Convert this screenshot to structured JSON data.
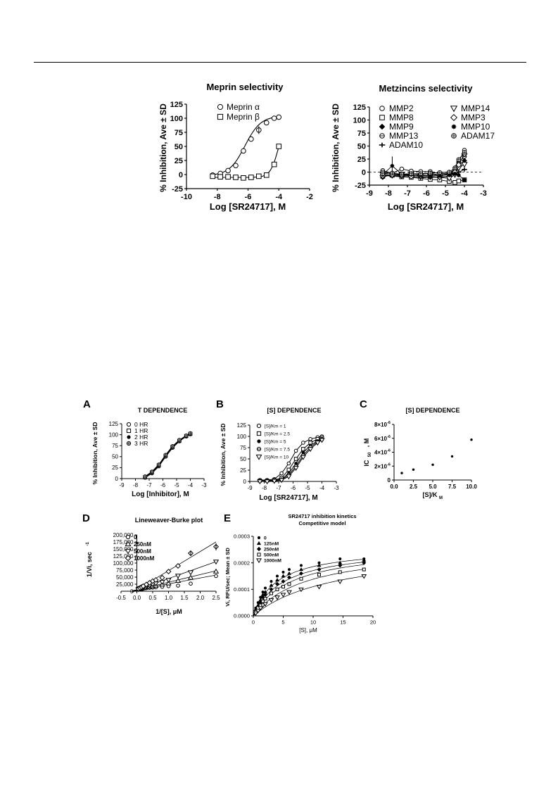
{
  "page": {
    "header_rule": true
  },
  "charts": {
    "meprin": {
      "title": "Meprin selectivity",
      "type": "line",
      "xlabel": "Log [SR24717], M",
      "ylabel": "% Inhibition, Ave ± SD",
      "xlim": [
        -10,
        -2
      ],
      "ylim": [
        -25,
        125
      ],
      "xticks": [
        "-10",
        "-8",
        "-6",
        "-4",
        "-2"
      ],
      "yticks": [
        "-25",
        "0",
        "25",
        "50",
        "75",
        "100",
        "125"
      ],
      "legend": [
        "Meprin α",
        "Meprin β"
      ],
      "series": [
        {
          "name": "Meprin α",
          "marker": "circle",
          "x": [
            -8.3,
            -7.8,
            -7.3,
            -6.8,
            -6.3,
            -5.8,
            -5.3,
            -4.8,
            -4.3,
            -4.0
          ],
          "y": [
            -1,
            2,
            7,
            16,
            42,
            63,
            79,
            92,
            100,
            102
          ]
        },
        {
          "name": "Meprin β",
          "marker": "square",
          "x": [
            -8.3,
            -7.8,
            -7.3,
            -6.8,
            -6.3,
            -5.8,
            -5.3,
            -4.8,
            -4.3,
            -4.0
          ],
          "y": [
            -3,
            -4,
            -4,
            -5,
            -6,
            -5,
            -3,
            -1,
            18,
            50
          ]
        }
      ]
    },
    "metzincins": {
      "title": "Metzincins selectivity",
      "type": "line",
      "xlabel": "Log [SR24717], M",
      "ylabel": "% Inhibition, Ave ± SD",
      "xlim": [
        -9,
        -3
      ],
      "ylim": [
        -25,
        125
      ],
      "xticks": [
        "-9",
        "-8",
        "-7",
        "-6",
        "-5",
        "-4",
        "-3"
      ],
      "yticks": [
        "-25",
        "0",
        "25",
        "50",
        "75",
        "100",
        "125"
      ],
      "legend": [
        "MMP2",
        "MMP8",
        "MMP9",
        "MMP13",
        "ADAM10",
        "MMP14",
        "MMP3",
        "MMP10",
        "ADAM17"
      ],
      "series": [
        {
          "name": "MMP2",
          "x": [
            -8.3,
            -7.8,
            -7.3,
            -6.8,
            -6.3,
            -5.8,
            -5.3,
            -4.8,
            -4.5,
            -4.3,
            -4.0
          ],
          "y": [
            3,
            -2,
            6,
            2,
            1,
            1,
            -3,
            -2,
            5,
            20,
            42
          ]
        },
        {
          "name": "MMP8",
          "x": [
            -8.3,
            -7.8,
            -7.3,
            -6.8,
            -6.3,
            -5.8,
            -5.3,
            -4.8,
            -4.5,
            -4.3,
            -4.0
          ],
          "y": [
            -8,
            -6,
            -9,
            -10,
            -12,
            -14,
            -15,
            -18,
            -20,
            -17,
            -15
          ]
        },
        {
          "name": "MMP9",
          "x": [
            -8.3,
            -7.8,
            -7.3,
            -6.8,
            -6.3,
            -5.8,
            -5.3,
            -4.8,
            -4.5,
            -4.3,
            -4.0
          ],
          "y": [
            -10,
            -4,
            -8,
            -6,
            -9,
            -10,
            -9,
            -8,
            2,
            10,
            22
          ]
        },
        {
          "name": "MMP13",
          "x": [
            -8.3,
            -7.8,
            -7.3,
            -6.8,
            -6.3,
            -5.8,
            -5.3,
            -4.8,
            -4.5,
            -4.3,
            -4.0
          ],
          "y": [
            0,
            -3,
            -5,
            -6,
            -4,
            -2,
            -6,
            -3,
            3,
            18,
            30
          ]
        },
        {
          "name": "ADAM10",
          "x": [
            -8.3,
            -7.8,
            -7.3,
            -6.8,
            -6.3,
            -5.8,
            -5.3,
            -4.8,
            -4.5,
            -4.3,
            -4.0
          ],
          "y": [
            -6,
            -8,
            -9,
            -9,
            -11,
            -10,
            -10,
            -8,
            -4,
            0,
            5
          ]
        },
        {
          "name": "MMP14",
          "x": [
            -8.3,
            -7.8,
            -7.3,
            -6.8,
            -6.3,
            -5.8,
            -5.3,
            -4.8,
            -4.5,
            -4.3,
            -4.0
          ],
          "y": [
            -4,
            -6,
            -5,
            -4,
            -7,
            -8,
            -10,
            -12,
            -5,
            8,
            15
          ]
        },
        {
          "name": "MMP3",
          "x": [
            -8.3,
            -7.8,
            -7.3,
            -6.8,
            -6.3,
            -5.8,
            -5.3,
            -4.8,
            -4.5,
            -4.3,
            -4.0
          ],
          "y": [
            -7,
            -5,
            -6,
            -8,
            -7,
            -6,
            -5,
            -4,
            0,
            14,
            35
          ]
        },
        {
          "name": "MMP10",
          "x": [
            -8.3,
            -7.8,
            -7.3,
            -6.8,
            -6.3,
            -5.8,
            -5.3,
            -4.8,
            -4.5,
            -4.3,
            -4.0
          ],
          "y": [
            -5,
            12,
            -4,
            -5,
            -6,
            -6,
            -7,
            -5,
            -3,
            -6,
            -15
          ]
        },
        {
          "name": "ADAM17",
          "x": [
            -8.3,
            -7.8,
            -7.3,
            -6.8,
            -6.3,
            -5.8,
            -5.3,
            -4.8,
            -4.5,
            -4.3,
            -4.0
          ],
          "y": [
            -3,
            -2,
            -4,
            -3,
            -3,
            -2,
            -1,
            0,
            8,
            24,
            38
          ]
        }
      ]
    },
    "panelA": {
      "letter": "A",
      "title": "T DEPENDENCE",
      "type": "line",
      "xlabel": "Log [Inhibitor], M",
      "ylabel": "% Inhibition, Ave ± SD",
      "xlim": [
        -9,
        -3
      ],
      "ylim": [
        0,
        125
      ],
      "xticks": [
        "-9",
        "-8",
        "-7",
        "-6",
        "-5",
        "-4",
        "-3"
      ],
      "yticks": [
        "0",
        "25",
        "50",
        "75",
        "100",
        "125"
      ],
      "legend": [
        "0 HR",
        "1 HR",
        "2 HR",
        "3 HR"
      ],
      "series": [
        {
          "name": "0 HR",
          "x": [
            -7.3,
            -6.8,
            -6.3,
            -5.8,
            -5.3,
            -4.8,
            -4.3,
            -4.0
          ],
          "y": [
            2,
            12,
            28,
            50,
            70,
            85,
            96,
            101
          ]
        },
        {
          "name": "1 HR",
          "x": [
            -7.3,
            -6.8,
            -6.3,
            -5.8,
            -5.3,
            -4.8,
            -4.3,
            -4.0
          ],
          "y": [
            3,
            14,
            30,
            52,
            72,
            86,
            97,
            102
          ]
        },
        {
          "name": "2 HR",
          "x": [
            -7.3,
            -6.8,
            -6.3,
            -5.8,
            -5.3,
            -4.8,
            -4.3,
            -4.0
          ],
          "y": [
            4,
            15,
            31,
            53,
            73,
            87,
            97,
            103
          ]
        },
        {
          "name": "3 HR",
          "x": [
            -7.3,
            -6.8,
            -6.3,
            -5.8,
            -5.3,
            -4.8,
            -4.3,
            -4.0
          ],
          "y": [
            5,
            16,
            32,
            54,
            74,
            88,
            98,
            103
          ]
        }
      ]
    },
    "panelB": {
      "letter": "B",
      "title": "[S] DEPENDENCE",
      "type": "line",
      "xlabel": "Log [SR24717], M",
      "ylabel": "% Inhibition, Ave ± SD",
      "xlim": [
        -9,
        -3
      ],
      "ylim": [
        0,
        125
      ],
      "xticks": [
        "-9",
        "-8",
        "-7",
        "-6",
        "-5",
        "-4",
        "-3"
      ],
      "yticks": [
        "0",
        "25",
        "50",
        "75",
        "100",
        "125"
      ],
      "legend": [
        "[S]/Km = 1",
        "[S]/Km = 2.5",
        "[S]/Km = 5",
        "[S]/Km = 7.5",
        "[S]/Km = 10"
      ],
      "series": [
        {
          "name": "[S]/Km = 1",
          "x": [
            -8.3,
            -7.8,
            -7.3,
            -6.8,
            -6.3,
            -5.8,
            -5.3,
            -4.8,
            -4.3,
            -4.0
          ],
          "y": [
            3,
            3,
            5,
            18,
            40,
            68,
            86,
            94,
            98,
            100
          ]
        },
        {
          "name": "[S]/Km = 2.5",
          "x": [
            -8.3,
            -7.8,
            -7.3,
            -6.8,
            -6.3,
            -5.8,
            -5.3,
            -4.8,
            -4.3,
            -4.0
          ],
          "y": [
            2,
            2,
            3,
            8,
            26,
            50,
            72,
            86,
            94,
            97
          ]
        },
        {
          "name": "[S]/Km = 5",
          "x": [
            -8.3,
            -7.8,
            -7.3,
            -6.8,
            -6.3,
            -5.8,
            -5.3,
            -4.8,
            -4.3,
            -4.0
          ],
          "y": [
            1,
            1,
            2,
            5,
            18,
            40,
            64,
            80,
            90,
            95
          ]
        },
        {
          "name": "[S]/Km = 7.5",
          "x": [
            -8.3,
            -7.8,
            -7.3,
            -6.8,
            -6.3,
            -5.8,
            -5.3,
            -4.8,
            -4.3,
            -4.0
          ],
          "y": [
            1,
            1,
            2,
            4,
            14,
            34,
            58,
            76,
            88,
            93
          ]
        },
        {
          "name": "[S]/Km = 10",
          "x": [
            -8.3,
            -7.8,
            -7.3,
            -6.8,
            -6.3,
            -5.8,
            -5.3,
            -4.8,
            -4.3,
            -4.0
          ],
          "y": [
            0,
            0,
            1,
            3,
            11,
            30,
            54,
            72,
            86,
            92
          ]
        }
      ]
    },
    "panelC": {
      "letter": "C",
      "title": "[S] DEPENDENCE",
      "type": "scatter",
      "xlabel": "[S]/K",
      "xlabel_sub": "M",
      "ylabel": "IC",
      "ylabel_sub": "50",
      "ylabel_suffix": ", M",
      "xlim": [
        0,
        10
      ],
      "ylim": [
        0,
        8e-06
      ],
      "xticks": [
        "0.0",
        "2.5",
        "5.0",
        "7.5",
        "10.0"
      ],
      "yticks": [
        "0",
        "2×10",
        "4×10",
        "6×10",
        "8×10"
      ],
      "ytick_exp": "-6",
      "series": [
        {
          "name": "",
          "x": [
            1,
            2.5,
            5,
            7.5,
            10
          ],
          "y": [
            1e-06,
            1.5e-06,
            2.2e-06,
            3.4e-06,
            5.8e-06
          ]
        }
      ]
    },
    "panelD": {
      "letter": "D",
      "title": "Lineweaver-Burke plot",
      "type": "line",
      "xlabel": "1/[S], μM",
      "ylabel": "1/Vi, sec",
      "ylabel_sup": "-1",
      "xlim": [
        -0.5,
        2.5
      ],
      "ylim": [
        0,
        200000
      ],
      "xticks": [
        "-0.5",
        "0.0",
        "0.5",
        "1.0",
        "1.5",
        "2.0",
        "2.5"
      ],
      "yticks": [
        "0",
        "25,000",
        "50,000",
        "75,000",
        "100,000",
        "125,000",
        "150,000",
        "175,000",
        "200,000"
      ],
      "legend": [
        "0",
        "250nM",
        "500nM",
        "1000nM"
      ],
      "series": [
        {
          "name": "0",
          "x": [
            0.05,
            0.1,
            0.15,
            0.2,
            0.3,
            0.4,
            0.5,
            0.6,
            0.8,
            1.0,
            1.3,
            1.7,
            2.5
          ],
          "y": [
            6000,
            7000,
            8000,
            9000,
            11000,
            12000,
            13000,
            14000,
            16000,
            18000,
            20000,
            27000,
            54000
          ],
          "slope": 21000,
          "intercept": 5000
        },
        {
          "name": "250nM",
          "x": [
            0.05,
            0.1,
            0.15,
            0.2,
            0.3,
            0.4,
            0.5,
            0.6,
            0.8,
            1.0,
            1.3,
            1.7,
            2.5
          ],
          "y": [
            7000,
            8000,
            10000,
            11000,
            14000,
            16000,
            18000,
            20000,
            24000,
            28000,
            37000,
            48000,
            70000
          ],
          "slope": 27000,
          "intercept": 5000
        },
        {
          "name": "500nM",
          "x": [
            0.05,
            0.1,
            0.15,
            0.2,
            0.3,
            0.4,
            0.5,
            0.6,
            0.8,
            1.0,
            1.3,
            1.7,
            2.5
          ],
          "y": [
            8000,
            10000,
            12000,
            14000,
            18000,
            21000,
            25000,
            28000,
            33000,
            40000,
            55000,
            67000,
            105000
          ],
          "slope": 40000,
          "intercept": 5000
        },
        {
          "name": "1000nM",
          "x": [
            0.05,
            0.1,
            0.15,
            0.2,
            0.3,
            0.4,
            0.5,
            0.6,
            0.8,
            1.0,
            1.3,
            1.7,
            2.5
          ],
          "y": [
            9000,
            12000,
            15000,
            18000,
            24000,
            30000,
            36000,
            40000,
            48000,
            70000,
            90000,
            135000,
            158000
          ],
          "slope": 68000,
          "intercept": 5000
        }
      ]
    },
    "panelE": {
      "letter": "E",
      "title": "SR24717 inhibition kinetics",
      "subtitle": "Competitive model",
      "type": "line",
      "xlabel": "[S], μM",
      "ylabel": "Vi, RFU/sec; Mean ± SD",
      "xlim": [
        0,
        20
      ],
      "ylim": [
        0,
        0.0003
      ],
      "xticks": [
        "0",
        "5",
        "10",
        "15",
        "20"
      ],
      "yticks": [
        "0.0000",
        "0.0001",
        "0.0002",
        "0.0003"
      ],
      "legend": [
        "0",
        "125nM",
        "250nM",
        "500nM",
        "1000nM"
      ],
      "vmax": 0.00026,
      "km": 4.0,
      "ki_factor": [
        1,
        1.3,
        1.6,
        2.2,
        3.4
      ],
      "series": [
        {
          "name": "0",
          "x": [
            0.4,
            0.8,
            1.2,
            1.6,
            2.0,
            3.0,
            4.0,
            5.0,
            6.0,
            8.0,
            11.0,
            14.5,
            18.5
          ],
          "y": [
            3e-05,
            5e-05,
            7e-05,
            9e-05,
            0.000105,
            0.00013,
            0.00015,
            0.000165,
            0.000175,
            0.00019,
            0.0002,
            0.000215,
            0.000215
          ]
        },
        {
          "name": "125nM",
          "x": [
            0.4,
            0.8,
            1.2,
            1.6,
            2.0,
            3.0,
            4.0,
            5.0,
            6.0,
            8.0,
            11.0,
            14.5,
            18.5
          ],
          "y": [
            2.5e-05,
            4e-05,
            6e-05,
            8e-05,
            9e-05,
            0.000115,
            0.000135,
            0.00015,
            0.00016,
            0.000175,
            0.00019,
            0.0002,
            0.00021
          ]
        },
        {
          "name": "250nM",
          "x": [
            0.4,
            0.8,
            1.2,
            1.6,
            2.0,
            3.0,
            4.0,
            5.0,
            6.0,
            8.0,
            11.0,
            14.5,
            18.5
          ],
          "y": [
            2e-05,
            3.5e-05,
            5e-05,
            7e-05,
            8e-05,
            0.0001,
            0.00012,
            0.00013,
            0.000145,
            0.00016,
            0.000175,
            0.00019,
            0.0002
          ]
        },
        {
          "name": "500nM",
          "x": [
            0.4,
            0.8,
            1.2,
            1.6,
            2.0,
            3.0,
            4.0,
            5.0,
            6.0,
            8.0,
            11.0,
            14.5,
            18.5
          ],
          "y": [
            1.5e-05,
            3e-05,
            4e-05,
            5.5e-05,
            6.5e-05,
            8.5e-05,
            0.0001,
            0.00011,
            0.00012,
            0.00014,
            0.000155,
            0.000165,
            0.000175
          ]
        },
        {
          "name": "1000nM",
          "x": [
            0.4,
            0.8,
            1.2,
            1.6,
            2.0,
            3.0,
            4.0,
            5.0,
            6.0,
            8.0,
            11.0,
            14.5,
            18.5
          ],
          "y": [
            1e-05,
            2e-05,
            3e-05,
            4e-05,
            4.5e-05,
            6e-05,
            7e-05,
            8e-05,
            9e-05,
            0.0001,
            0.00011,
            0.00013,
            0.00015
          ]
        }
      ]
    }
  }
}
